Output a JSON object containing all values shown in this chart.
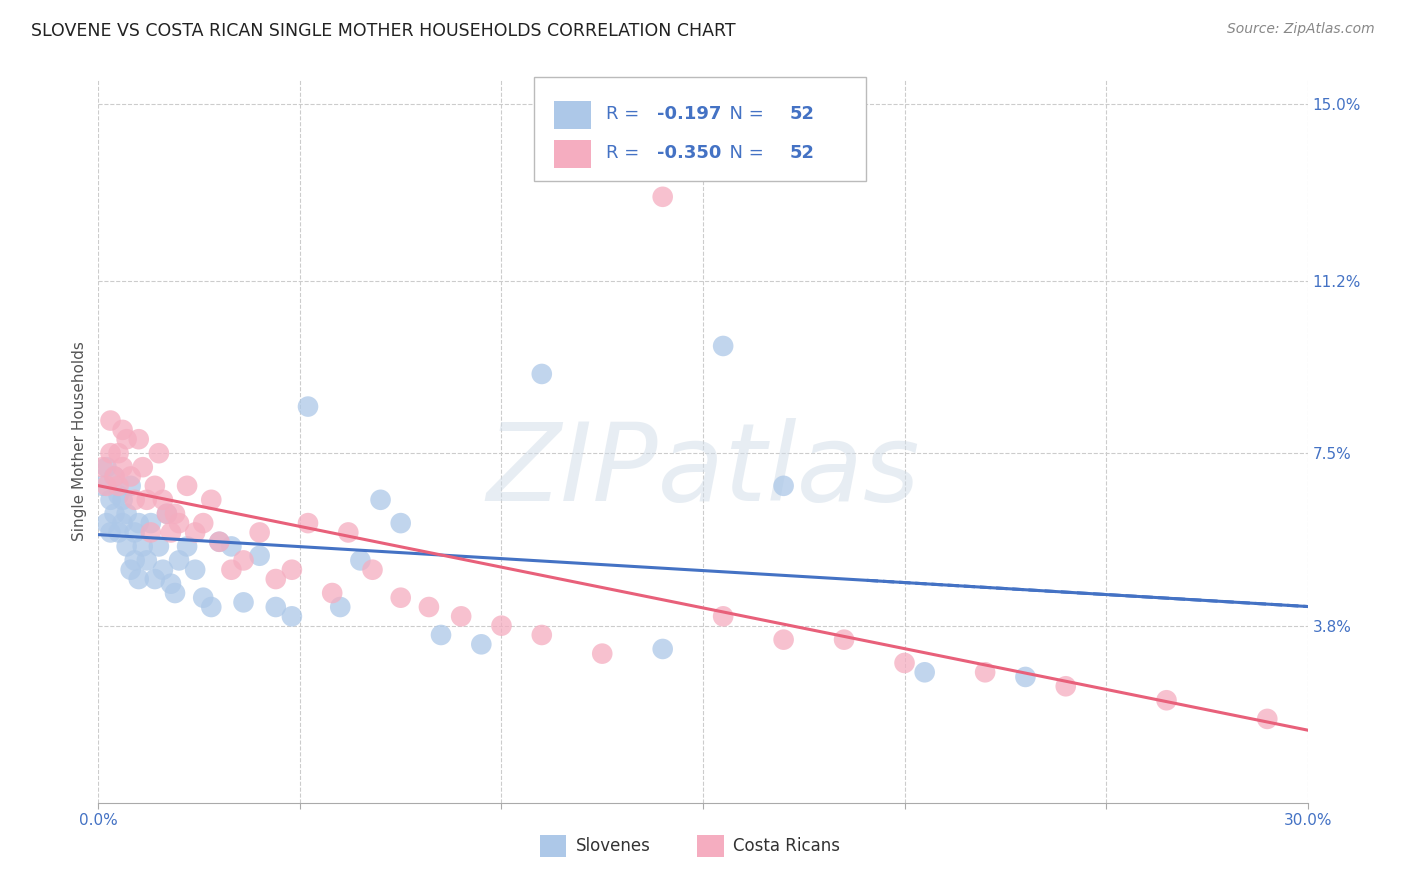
{
  "title": "SLOVENE VS COSTA RICAN SINGLE MOTHER HOUSEHOLDS CORRELATION CHART",
  "source": "Source: ZipAtlas.com",
  "ylabel": "Single Mother Households",
  "xlabel": "",
  "xlim": [
    0.0,
    0.3
  ],
  "ylim": [
    0.0,
    0.155
  ],
  "xtick_vals": [
    0.0,
    0.05,
    0.1,
    0.15,
    0.2,
    0.25,
    0.3
  ],
  "xtick_labels": [
    "0.0%",
    "",
    "",
    "",
    "",
    "",
    "30.0%"
  ],
  "ytick_labels_right": [
    "15.0%",
    "11.2%",
    "7.5%",
    "3.8%"
  ],
  "ytick_vals_right": [
    0.15,
    0.112,
    0.075,
    0.038
  ],
  "r_slovene": -0.197,
  "n_slovene": 52,
  "r_costa_rican": -0.35,
  "n_costa_rican": 52,
  "slovene_color": "#adc8e8",
  "costa_rican_color": "#f5adc0",
  "slovene_line_color": "#4472C4",
  "costa_rican_line_color": "#e8607a",
  "watermark_text": "ZIPatlas",
  "background_color": "#ffffff",
  "grid_color": "#cccccc",
  "slovene_x": [
    0.001,
    0.002,
    0.002,
    0.003,
    0.003,
    0.004,
    0.004,
    0.005,
    0.005,
    0.006,
    0.006,
    0.007,
    0.007,
    0.008,
    0.008,
    0.009,
    0.009,
    0.01,
    0.01,
    0.011,
    0.012,
    0.013,
    0.014,
    0.015,
    0.016,
    0.017,
    0.018,
    0.019,
    0.02,
    0.022,
    0.024,
    0.026,
    0.028,
    0.03,
    0.033,
    0.036,
    0.04,
    0.044,
    0.048,
    0.052,
    0.06,
    0.065,
    0.07,
    0.075,
    0.085,
    0.095,
    0.11,
    0.14,
    0.155,
    0.17,
    0.205,
    0.23
  ],
  "slovene_y": [
    0.068,
    0.072,
    0.06,
    0.065,
    0.058,
    0.07,
    0.062,
    0.066,
    0.058,
    0.065,
    0.06,
    0.062,
    0.055,
    0.068,
    0.05,
    0.058,
    0.052,
    0.06,
    0.048,
    0.055,
    0.052,
    0.06,
    0.048,
    0.055,
    0.05,
    0.062,
    0.047,
    0.045,
    0.052,
    0.055,
    0.05,
    0.044,
    0.042,
    0.056,
    0.055,
    0.043,
    0.053,
    0.042,
    0.04,
    0.085,
    0.042,
    0.052,
    0.065,
    0.06,
    0.036,
    0.034,
    0.092,
    0.033,
    0.098,
    0.068,
    0.028,
    0.027
  ],
  "costa_rican_x": [
    0.001,
    0.002,
    0.003,
    0.003,
    0.004,
    0.005,
    0.005,
    0.006,
    0.006,
    0.007,
    0.008,
    0.009,
    0.01,
    0.011,
    0.012,
    0.013,
    0.014,
    0.015,
    0.016,
    0.017,
    0.018,
    0.019,
    0.02,
    0.022,
    0.024,
    0.026,
    0.028,
    0.03,
    0.033,
    0.036,
    0.04,
    0.044,
    0.048,
    0.052,
    0.058,
    0.062,
    0.068,
    0.075,
    0.082,
    0.09,
    0.1,
    0.11,
    0.125,
    0.14,
    0.155,
    0.17,
    0.185,
    0.2,
    0.22,
    0.24,
    0.265,
    0.29
  ],
  "costa_rican_y": [
    0.072,
    0.068,
    0.082,
    0.075,
    0.07,
    0.075,
    0.068,
    0.08,
    0.072,
    0.078,
    0.07,
    0.065,
    0.078,
    0.072,
    0.065,
    0.058,
    0.068,
    0.075,
    0.065,
    0.062,
    0.058,
    0.062,
    0.06,
    0.068,
    0.058,
    0.06,
    0.065,
    0.056,
    0.05,
    0.052,
    0.058,
    0.048,
    0.05,
    0.06,
    0.045,
    0.058,
    0.05,
    0.044,
    0.042,
    0.04,
    0.038,
    0.036,
    0.032,
    0.13,
    0.04,
    0.035,
    0.035,
    0.03,
    0.028,
    0.025,
    0.022,
    0.018
  ]
}
